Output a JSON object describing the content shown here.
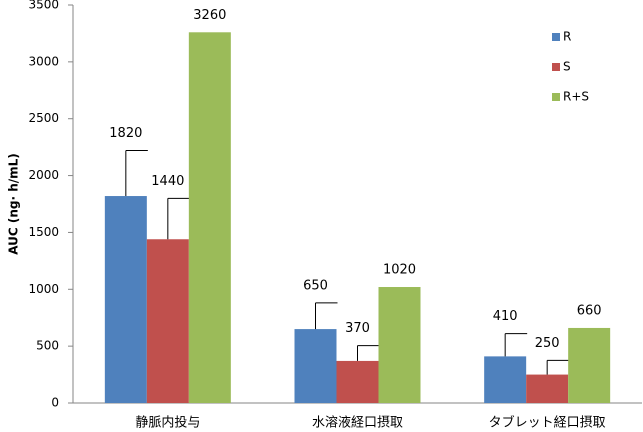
{
  "chart_data": {
    "type": "bar",
    "y_label": "AUC (ng· h/mL)",
    "categories": [
      "静脈内投与",
      "水溶液経口摂取",
      "タブレット経口摂取"
    ],
    "series": [
      {
        "name": "R",
        "color": "#4f81bd",
        "values": [
          1820,
          650,
          410
        ],
        "errors": [
          400,
          230,
          200
        ]
      },
      {
        "name": "S",
        "color": "#c0504d",
        "values": [
          1440,
          370,
          250
        ],
        "errors": [
          360,
          135,
          125
        ]
      },
      {
        "name": "R+S",
        "color": "#9bbb59",
        "values": [
          3260,
          1020,
          660
        ]
      }
    ],
    "ylim": [
      0,
      3500
    ],
    "yticks": [
      0,
      500,
      1000,
      1500,
      2000,
      2500,
      3000,
      3500
    ],
    "legend": "top-right"
  }
}
